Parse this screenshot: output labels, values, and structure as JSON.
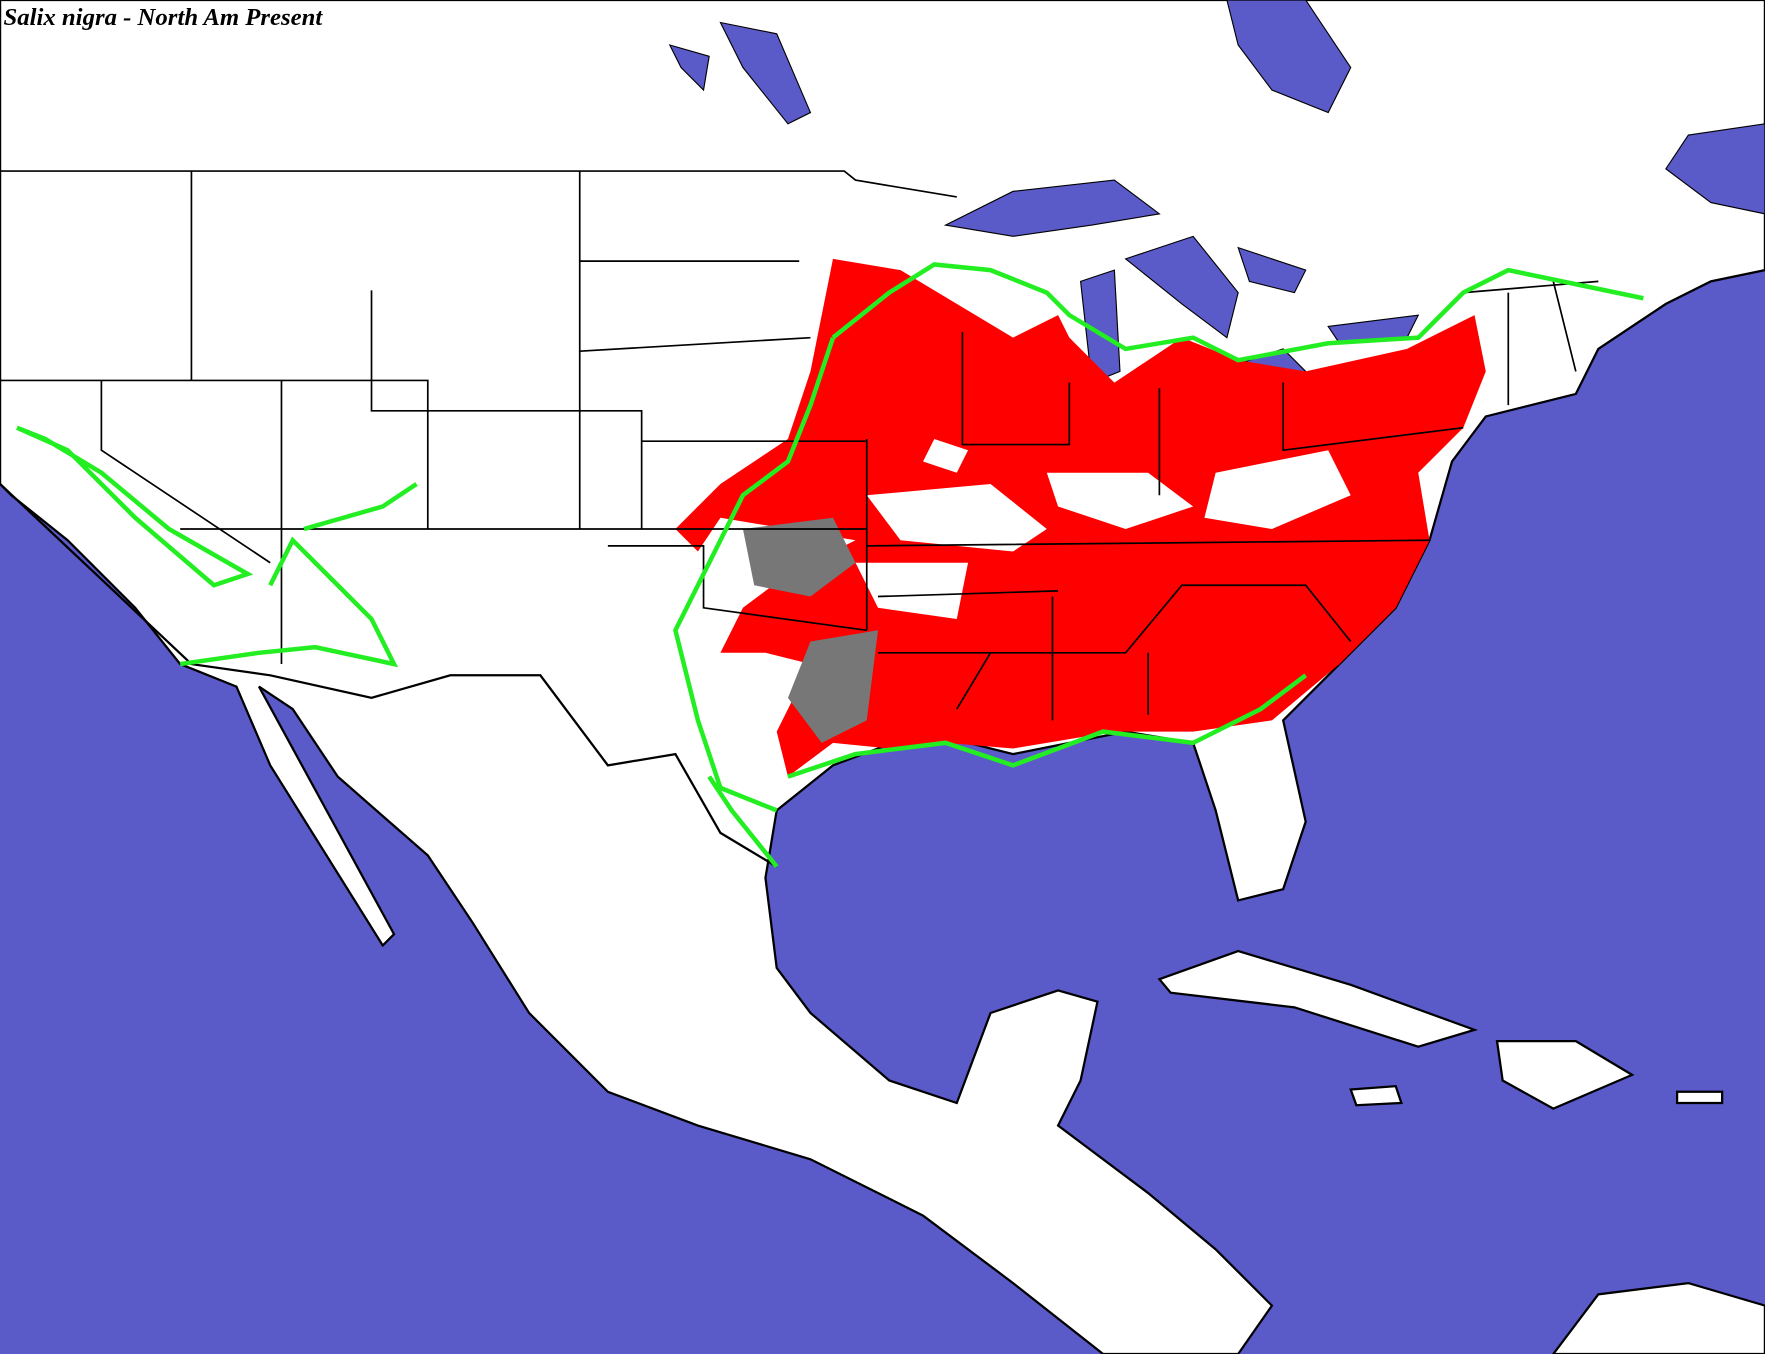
{
  "title": "Salix nigra - North Am Present"
}
